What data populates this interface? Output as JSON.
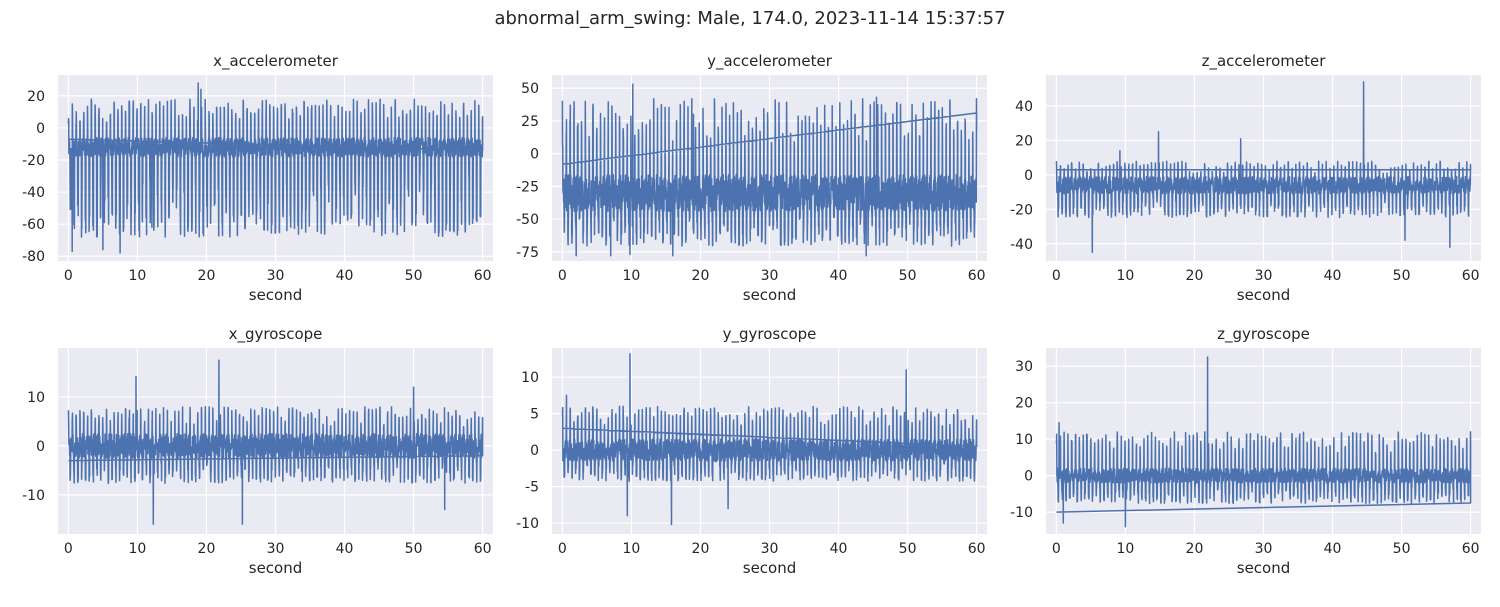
{
  "figure": {
    "title": "abnormal_arm_swing: Male, 174.0, 2023-11-14 15:37:57"
  },
  "style": {
    "plot_bg": "#eaeaf2",
    "grid": "#ffffff",
    "line": "#4c72b0"
  },
  "chart_data": [
    {
      "type": "line",
      "title": "x_accelerometer",
      "xlabel": "second",
      "ylabel": "",
      "xlim": [
        -1.5,
        61.5
      ],
      "ylim": [
        -83,
        33
      ],
      "xticks": [
        0,
        10,
        20,
        30,
        40,
        50,
        60
      ],
      "yticks": [
        -80,
        -60,
        -40,
        -20,
        0,
        20
      ],
      "grid": true,
      "signal": {
        "duration": 60,
        "period": 0.55,
        "base": -12,
        "peak_max": 18,
        "trough_min": -78,
        "noise": 6,
        "closing_segment": [
          -7,
          -14
        ],
        "spikes": [
          [
            18.8,
            28
          ],
          [
            19.2,
            24
          ],
          [
            5.0,
            -76
          ],
          [
            7.5,
            -78
          ],
          [
            10.3,
            -68
          ],
          [
            12.1,
            -62
          ],
          [
            32.2,
            -62
          ],
          [
            55.8,
            -64
          ],
          [
            0.55,
            -77
          ]
        ]
      }
    },
    {
      "type": "line",
      "title": "y_accelerometer",
      "xlabel": "second",
      "ylabel": "",
      "xlim": [
        -1.5,
        61.5
      ],
      "ylim": [
        -82,
        60
      ],
      "xticks": [
        0,
        10,
        20,
        30,
        40,
        50,
        60
      ],
      "yticks": [
        -75,
        -50,
        -25,
        0,
        25,
        50
      ],
      "grid": true,
      "signal": {
        "duration": 60,
        "period": 0.55,
        "base": -30,
        "peak_max": 42,
        "trough_min": -78,
        "noise": 14,
        "closing_segment": [
          -8,
          31
        ],
        "spikes": [
          [
            10.2,
            53
          ],
          [
            19.0,
            30
          ],
          [
            45.5,
            43
          ],
          [
            2.0,
            -78
          ],
          [
            7.0,
            -78
          ],
          [
            9.8,
            -77
          ],
          [
            16.0,
            -78
          ],
          [
            44.0,
            -78
          ]
        ]
      }
    },
    {
      "type": "line",
      "title": "z_accelerometer",
      "xlabel": "second",
      "ylabel": "",
      "xlim": [
        -1.5,
        61.5
      ],
      "ylim": [
        -50,
        58
      ],
      "xticks": [
        0,
        10,
        20,
        30,
        40,
        50,
        60
      ],
      "yticks": [
        -40,
        -20,
        0,
        20,
        40
      ],
      "grid": true,
      "signal": {
        "duration": 60,
        "period": 0.55,
        "base": -6,
        "peak_max": 8,
        "trough_min": -28,
        "noise": 5,
        "closing_segment": [
          3,
          3
        ],
        "spikes": [
          [
            44.5,
            54
          ],
          [
            14.8,
            25
          ],
          [
            26.7,
            21
          ],
          [
            9.2,
            14
          ],
          [
            5.2,
            -45
          ],
          [
            57.0,
            -42
          ],
          [
            50.5,
            -38
          ]
        ]
      }
    },
    {
      "type": "line",
      "title": "x_gyroscope",
      "xlabel": "second",
      "ylabel": "",
      "xlim": [
        -1.5,
        61.5
      ],
      "ylim": [
        -18,
        20
      ],
      "xticks": [
        0,
        10,
        20,
        30,
        40,
        50,
        60
      ],
      "yticks": [
        -10,
        0,
        10
      ],
      "grid": true,
      "signal": {
        "duration": 60,
        "period": 0.55,
        "base": 0,
        "peak_max": 8,
        "trough_min": -9,
        "noise": 2.5,
        "closing_segment": [
          -3,
          -2
        ],
        "spikes": [
          [
            21.8,
            17.5
          ],
          [
            9.8,
            14.2
          ],
          [
            50.0,
            12
          ],
          [
            12.3,
            -16
          ],
          [
            25.2,
            -16
          ],
          [
            54.5,
            -13
          ]
        ]
      }
    },
    {
      "type": "line",
      "title": "y_gyroscope",
      "xlabel": "second",
      "ylabel": "",
      "xlim": [
        -1.5,
        61.5
      ],
      "ylim": [
        -11.5,
        14
      ],
      "xticks": [
        0,
        10,
        20,
        30,
        40,
        50,
        60
      ],
      "yticks": [
        -10,
        -5,
        0,
        5,
        10
      ],
      "grid": true,
      "signal": {
        "duration": 60,
        "period": 0.55,
        "base": 0,
        "peak_max": 6,
        "trough_min": -5,
        "noise": 1.5,
        "closing_segment": [
          3,
          0.5
        ],
        "spikes": [
          [
            9.8,
            13.2
          ],
          [
            49.8,
            11
          ],
          [
            0.6,
            7.5
          ],
          [
            15.8,
            -10.2
          ],
          [
            9.4,
            -9
          ],
          [
            24.0,
            -8
          ]
        ]
      }
    },
    {
      "type": "line",
      "title": "z_gyroscope",
      "xlabel": "second",
      "ylabel": "",
      "xlim": [
        -1.5,
        61.5
      ],
      "ylim": [
        -16,
        35
      ],
      "xticks": [
        0,
        10,
        20,
        30,
        40,
        50,
        60
      ],
      "yticks": [
        -10,
        0,
        10,
        20,
        30
      ],
      "grid": true,
      "signal": {
        "duration": 60,
        "period": 0.55,
        "base": 0,
        "peak_max": 12,
        "trough_min": -9,
        "noise": 2,
        "closing_segment": [
          -10,
          -7.5
        ],
        "spikes": [
          [
            21.9,
            32.5
          ],
          [
            10.0,
            -14
          ],
          [
            1.0,
            -13
          ],
          [
            0.4,
            14.5
          ],
          [
            21.5,
            12
          ]
        ]
      }
    }
  ]
}
